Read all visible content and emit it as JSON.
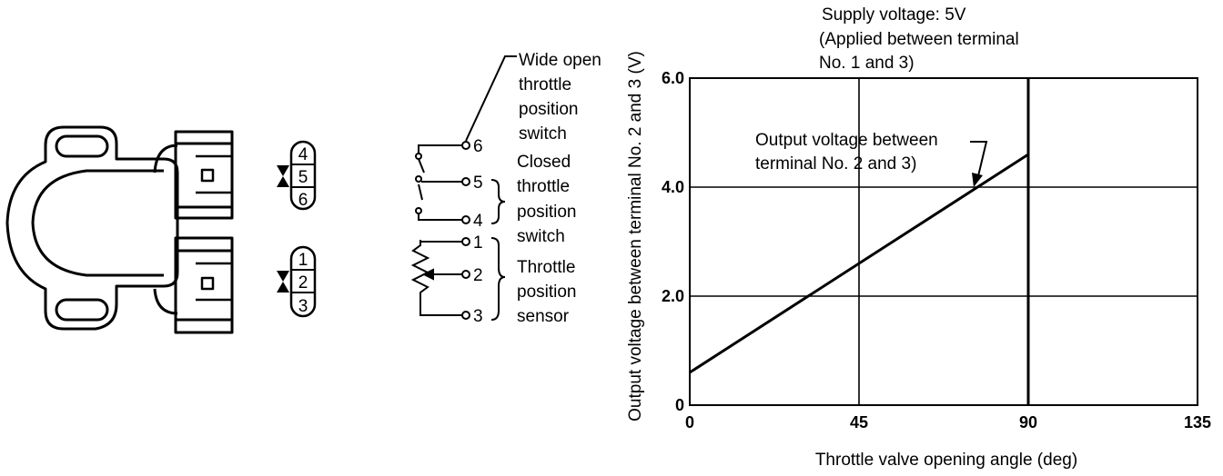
{
  "connector": {
    "upper_pins": [
      "4",
      "5",
      "6"
    ],
    "lower_pins": [
      "1",
      "2",
      "3"
    ]
  },
  "schematic": {
    "terminals": [
      "6",
      "5",
      "4",
      "1",
      "2",
      "3"
    ],
    "labels": {
      "wide_open": [
        "Wide open",
        "throttle",
        "position",
        "switch"
      ],
      "closed": [
        "Closed",
        "throttle",
        "position",
        "switch"
      ],
      "sensor": [
        "Throttle",
        "position",
        "sensor"
      ]
    }
  },
  "chart_data": {
    "type": "line",
    "title": [
      "Supply voltage: 5V",
      "(Applied between terminal",
      "No. 1 and 3)"
    ],
    "xlabel": "Throttle valve opening angle (deg)",
    "ylabel": "Output voltage between terminal No. 2 and 3 (V)",
    "xlim": [
      0,
      135
    ],
    "ylim": [
      0,
      6.0
    ],
    "x_ticks": [
      "0",
      "45",
      "90",
      "135"
    ],
    "y_ticks": [
      "0",
      "2.0",
      "4.0",
      "6.0"
    ],
    "series": [
      {
        "name": "Output voltage between terminal No. 2 and 3)",
        "x": [
          0,
          90
        ],
        "y": [
          0.6,
          4.6
        ]
      }
    ],
    "annotation": [
      "Output voltage between",
      "terminal No. 2 and 3)"
    ],
    "grid": true
  }
}
